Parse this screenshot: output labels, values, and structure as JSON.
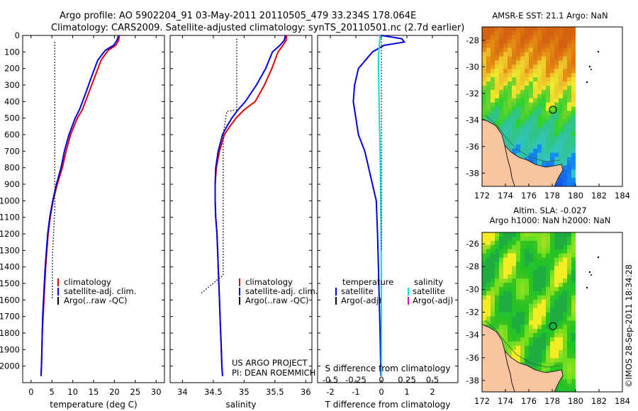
{
  "header": {
    "line1": "Argo profile: AO 5902204_91 03-May-2011 20110505_479 33.234S 178.064E",
    "line2": "Climatology: CARS2009. Satellite-adjusted climatology: synTS_20110501.nc (2.7d earlier)"
  },
  "credit": {
    "project": "US ARGO PROJECT",
    "pi": "PI: DEAN ROEMMICH",
    "imos": "©IMOS 28-Sep-2011 18:34:28"
  },
  "colors": {
    "climatology": "#e00000",
    "satellite": "#0000e0",
    "argo": "#000000",
    "salinity_sat": "#00e0e0",
    "salinity_adj": "#e000e0",
    "land": "#f7c6a0"
  },
  "chart_data": [
    {
      "id": "temperature",
      "type": "line",
      "xlabel": "temperature (deg C)",
      "xlim": [
        -2,
        32
      ],
      "xticks": [
        0,
        5,
        10,
        15,
        20,
        25,
        30
      ],
      "ylim": [
        2100,
        0
      ],
      "yticks": [
        0,
        100,
        200,
        300,
        400,
        500,
        600,
        700,
        800,
        900,
        1000,
        1100,
        1200,
        1300,
        1400,
        1500,
        1600,
        1700,
        1800,
        1900,
        2000
      ],
      "legend": [
        "climatology",
        "satellite-adj. clim.",
        "Argo(..raw -QC)"
      ],
      "series": [
        {
          "name": "climatology",
          "color": "#e00000",
          "points": [
            [
              21.2,
              0
            ],
            [
              21.0,
              30
            ],
            [
              20.3,
              60
            ],
            [
              18.5,
              90
            ],
            [
              16.8,
              150
            ],
            [
              15.3,
              250
            ],
            [
              13.8,
              350
            ],
            [
              12.3,
              450
            ],
            [
              11.1,
              500
            ],
            [
              9.5,
              600
            ],
            [
              8.4,
              700
            ],
            [
              7.5,
              800
            ],
            [
              6.3,
              900
            ],
            [
              5.3,
              1000
            ],
            [
              4.6,
              1100
            ],
            [
              4.1,
              1200
            ],
            [
              3.8,
              1300
            ],
            [
              3.5,
              1400
            ],
            [
              3.3,
              1500
            ],
            [
              3.1,
              1600
            ],
            [
              2.9,
              1700
            ],
            [
              2.7,
              1800
            ],
            [
              2.6,
              1900
            ],
            [
              2.5,
              2000
            ],
            [
              2.4,
              2060
            ]
          ]
        },
        {
          "name": "satellite-adj. clim.",
          "color": "#0000e0",
          "points": [
            [
              21.0,
              0
            ],
            [
              20.6,
              30
            ],
            [
              19.8,
              60
            ],
            [
              17.8,
              90
            ],
            [
              16.0,
              150
            ],
            [
              14.5,
              250
            ],
            [
              13.1,
              350
            ],
            [
              11.6,
              450
            ],
            [
              10.6,
              500
            ],
            [
              9.1,
              600
            ],
            [
              8.0,
              700
            ],
            [
              7.2,
              800
            ],
            [
              6.1,
              900
            ],
            [
              5.2,
              1000
            ],
            [
              4.5,
              1100
            ],
            [
              4.0,
              1200
            ],
            [
              3.7,
              1300
            ],
            [
              3.4,
              1400
            ],
            [
              3.2,
              1500
            ],
            [
              3.0,
              1600
            ],
            [
              2.8,
              1700
            ],
            [
              2.7,
              1800
            ],
            [
              2.6,
              1900
            ],
            [
              2.5,
              2000
            ],
            [
              2.4,
              2060
            ]
          ]
        },
        {
          "name": "Argo(..raw -QC)",
          "color": "#000000",
          "dashed": true,
          "points": [
            [
              5.7,
              40
            ],
            [
              5.7,
              1050
            ],
            [
              5.1,
              1350
            ],
            [
              5.1,
              1600
            ]
          ]
        }
      ]
    },
    {
      "id": "salinity",
      "type": "line",
      "xlabel": "salinity",
      "xlim": [
        33.8,
        36.1
      ],
      "xticks": [
        34,
        34.5,
        35,
        35.5,
        36
      ],
      "ylim": [
        2100,
        0
      ],
      "legend": [
        "climatology",
        "satellite-adj. clim.",
        "Argo(..raw -QC)"
      ],
      "series": [
        {
          "name": "climatology",
          "color": "#e00000",
          "points": [
            [
              35.69,
              0
            ],
            [
              35.68,
              30
            ],
            [
              35.63,
              60
            ],
            [
              35.55,
              100
            ],
            [
              35.45,
              200
            ],
            [
              35.33,
              300
            ],
            [
              35.18,
              400
            ],
            [
              35.0,
              450
            ],
            [
              34.87,
              500
            ],
            [
              34.77,
              550
            ],
            [
              34.68,
              600
            ],
            [
              34.6,
              700
            ],
            [
              34.55,
              800
            ],
            [
              34.53,
              900
            ],
            [
              34.53,
              1000
            ],
            [
              34.54,
              1100
            ],
            [
              34.56,
              1200
            ],
            [
              34.57,
              1300
            ],
            [
              34.58,
              1400
            ],
            [
              34.59,
              1500
            ],
            [
              34.6,
              1600
            ],
            [
              34.61,
              1700
            ],
            [
              34.62,
              1800
            ],
            [
              34.63,
              1900
            ],
            [
              34.64,
              2000
            ],
            [
              34.65,
              2060
            ]
          ]
        },
        {
          "name": "satellite-adj. clim.",
          "color": "#0000e0",
          "points": [
            [
              35.67,
              0
            ],
            [
              35.65,
              30
            ],
            [
              35.58,
              60
            ],
            [
              35.46,
              100
            ],
            [
              35.35,
              200
            ],
            [
              35.2,
              300
            ],
            [
              35.02,
              400
            ],
            [
              34.9,
              450
            ],
            [
              34.8,
              500
            ],
            [
              34.72,
              550
            ],
            [
              34.65,
              600
            ],
            [
              34.58,
              700
            ],
            [
              34.54,
              800
            ],
            [
              34.53,
              900
            ],
            [
              34.53,
              1000
            ],
            [
              34.54,
              1100
            ],
            [
              34.56,
              1200
            ],
            [
              34.57,
              1300
            ],
            [
              34.58,
              1400
            ],
            [
              34.59,
              1500
            ],
            [
              34.6,
              1600
            ],
            [
              34.61,
              1700
            ],
            [
              34.62,
              1800
            ],
            [
              34.63,
              1900
            ],
            [
              34.64,
              2000
            ],
            [
              34.65,
              2060
            ]
          ]
        },
        {
          "name": "Argo(..raw -QC)",
          "color": "#000000",
          "dashed": true,
          "points": [
            [
              34.88,
              20
            ],
            [
              34.88,
              450
            ],
            [
              34.72,
              460
            ],
            [
              34.66,
              600
            ],
            [
              34.66,
              1450
            ],
            [
              34.3,
              1560
            ]
          ]
        }
      ]
    },
    {
      "id": "differences",
      "type": "line",
      "xlabel": "T difference from climatology",
      "xlabel2": "S difference from climatology",
      "xlim": [
        -2.5,
        3
      ],
      "xticks": [
        -2,
        -1,
        0,
        1,
        2
      ],
      "xticks_s_values": [
        -0.5,
        -0.25,
        0,
        0.25,
        0.5
      ],
      "xticks_s": [
        "-0.5",
        "-0.25",
        "0",
        "0.25",
        "0.5"
      ],
      "ylim": [
        2100,
        0
      ],
      "legend_t_title": "temperature",
      "legend_t": [
        "satellite",
        "Argo(-adj)"
      ],
      "legend_s_title": "salinity",
      "legend_s": [
        "satellite",
        "Argo(-adj)"
      ],
      "series": [
        {
          "name": "temperature satellite",
          "color": "#0000e0",
          "points": [
            [
              0,
              0
            ],
            [
              0.8,
              20
            ],
            [
              0.9,
              40
            ],
            [
              0.1,
              60
            ],
            [
              -0.35,
              100
            ],
            [
              -0.9,
              200
            ],
            [
              -1.05,
              300
            ],
            [
              -1.1,
              400
            ],
            [
              -1.0,
              500
            ],
            [
              -0.9,
              600
            ],
            [
              -0.65,
              700
            ],
            [
              -0.5,
              800
            ],
            [
              -0.35,
              900
            ],
            [
              -0.2,
              1000
            ],
            [
              -0.15,
              1200
            ],
            [
              -0.1,
              1500
            ],
            [
              -0.05,
              1800
            ],
            [
              -0.02,
              2060
            ]
          ]
        },
        {
          "name": "salinity satellite",
          "color": "#00e0e0",
          "points": [
            [
              -0.05,
              0
            ],
            [
              -0.08,
              60
            ],
            [
              -0.12,
              150
            ],
            [
              -0.1,
              300
            ],
            [
              -0.08,
              500
            ],
            [
              -0.05,
              700
            ],
            [
              -0.03,
              900
            ],
            [
              -0.01,
              1200
            ],
            [
              0,
              1500
            ],
            [
              0,
              2060
            ]
          ]
        },
        {
          "name": "zero line",
          "color": "#000000",
          "dashed": true,
          "points": [
            [
              0,
              20
            ],
            [
              0,
              1300
            ]
          ]
        }
      ]
    },
    {
      "id": "sst_map",
      "type": "heatmap",
      "title": "AMSR-E SST: 21.1  Argo: NaN",
      "xlim": [
        172,
        184
      ],
      "xticks": [
        172,
        174,
        176,
        178,
        180,
        182,
        184
      ],
      "ylim": [
        -39,
        -27
      ],
      "yticks": [
        -28,
        -30,
        -32,
        -34,
        -36,
        -38
      ],
      "float_position": [
        178.06,
        -33.23
      ]
    },
    {
      "id": "sla_map",
      "type": "heatmap",
      "title": "Altim. SLA: -0.027",
      "subtitle": "Argo h1000: NaN h2000: NaN",
      "xlim": [
        172,
        184
      ],
      "xticks": [
        172,
        174,
        176,
        178,
        180,
        182,
        184
      ],
      "ylim": [
        -39,
        -25
      ],
      "yticks": [
        -26,
        -28,
        -30,
        -32,
        -34,
        -36,
        -38
      ],
      "float_position": [
        178.06,
        -33.23
      ]
    }
  ]
}
